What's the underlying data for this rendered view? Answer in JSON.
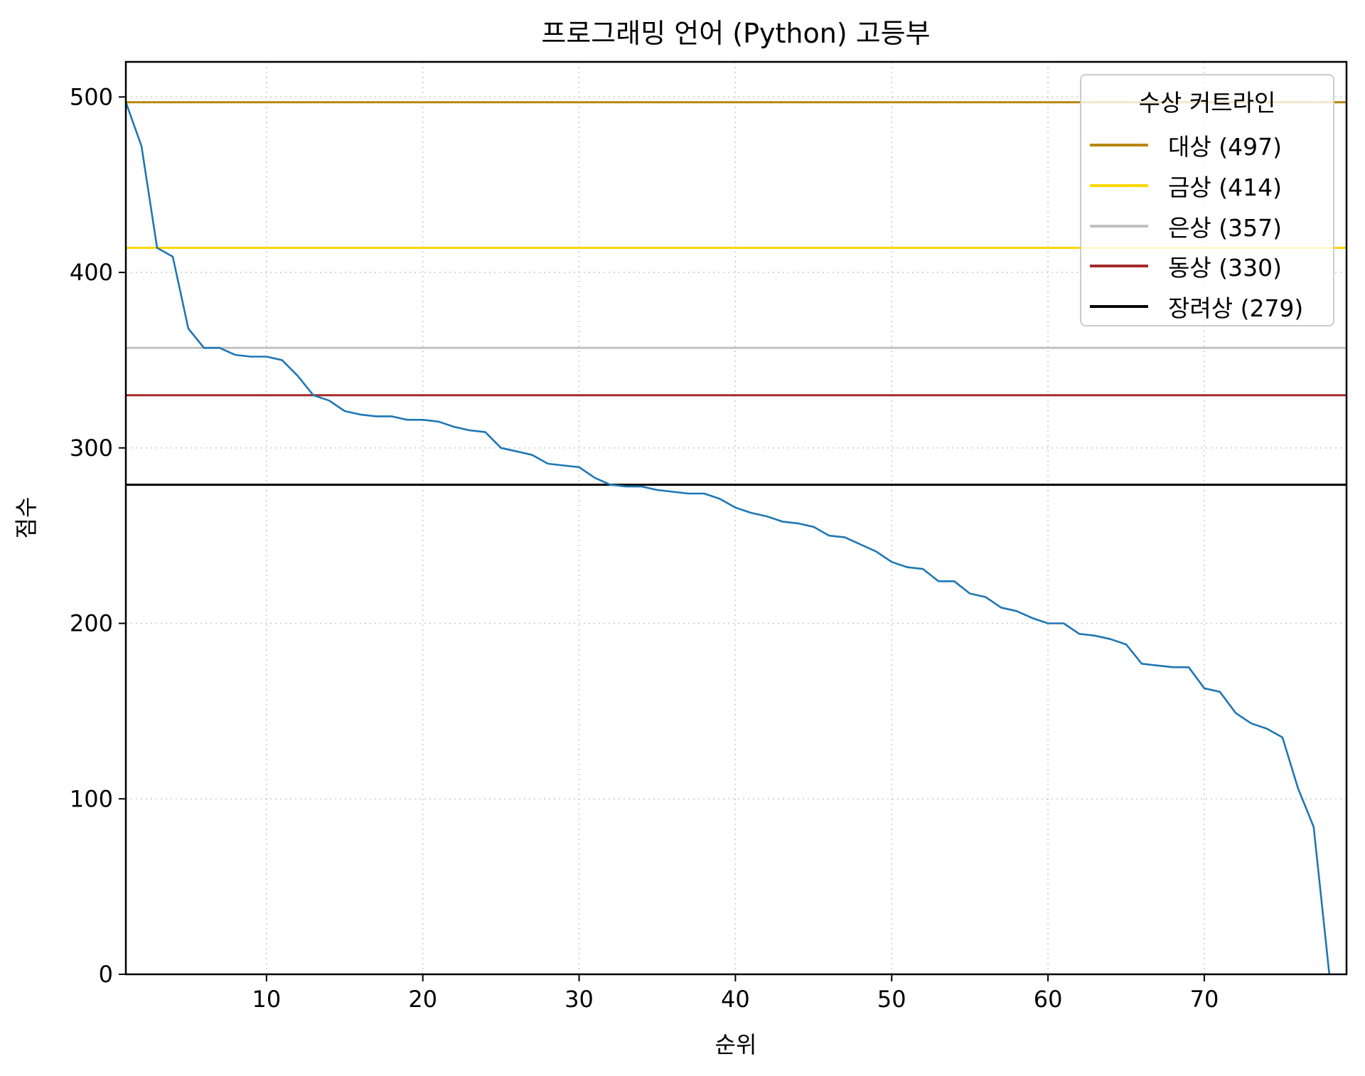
{
  "chart_data": {
    "type": "line",
    "title": "프로그래밍 언어 (Python) 고등부",
    "xlabel": "순위",
    "ylabel": "점수",
    "xlim": [
      1,
      79.1
    ],
    "ylim": [
      0,
      520
    ],
    "xticks": [
      10,
      20,
      30,
      40,
      50,
      60,
      70
    ],
    "yticks": [
      0,
      100,
      200,
      300,
      400,
      500
    ],
    "grid": true,
    "legend_position": "upper right",
    "legend_title": "수상 커트라인",
    "series": [
      {
        "name": "점수",
        "color": "#1f77b4",
        "x": [
          1,
          2,
          3,
          4,
          5,
          6,
          7,
          8,
          9,
          10,
          11,
          12,
          13,
          14,
          15,
          16,
          17,
          18,
          19,
          20,
          21,
          22,
          23,
          24,
          25,
          26,
          27,
          28,
          29,
          30,
          31,
          32,
          33,
          34,
          35,
          36,
          37,
          38,
          39,
          40,
          41,
          42,
          43,
          44,
          45,
          46,
          47,
          48,
          49,
          50,
          51,
          52,
          53,
          54,
          55,
          56,
          57,
          58,
          59,
          60,
          61,
          62,
          63,
          64,
          65,
          66,
          67,
          68,
          69,
          70,
          71,
          72,
          73,
          74,
          75,
          76,
          77,
          78
        ],
        "values": [
          497,
          472,
          414,
          409,
          368,
          357,
          357,
          353,
          352,
          352,
          350,
          341,
          330,
          327,
          321,
          319,
          318,
          318,
          316,
          316,
          315,
          312,
          310,
          309,
          300,
          298,
          296,
          291,
          290,
          289,
          283,
          279,
          278,
          278,
          276,
          275,
          274,
          274,
          271,
          266,
          263,
          261,
          258,
          257,
          255,
          250,
          249,
          245,
          241,
          235,
          232,
          231,
          224,
          224,
          217,
          215,
          209,
          207,
          203,
          200,
          200,
          194,
          193,
          191,
          188,
          177,
          176,
          175,
          175,
          163,
          161,
          149,
          143,
          140,
          135,
          106,
          84,
          0
        ]
      }
    ],
    "hlines": [
      {
        "label": "대상 (497)",
        "value": 497,
        "color": "#b8860b"
      },
      {
        "label": "금상 (414)",
        "value": 414,
        "color": "#ffd700"
      },
      {
        "label": "은상 (357)",
        "value": 357,
        "color": "#c0c0c0"
      },
      {
        "label": "동상 (330)",
        "value": 330,
        "color": "#a52a2a"
      },
      {
        "label": "장려상 (279)",
        "value": 279,
        "color": "#000000"
      }
    ]
  },
  "legend": {
    "title": "수상 커트라인",
    "items": [
      {
        "label": "대상 (497)",
        "color": "#b8860b"
      },
      {
        "label": "금상 (414)",
        "color": "#ffd700"
      },
      {
        "label": "은상 (357)",
        "color": "#c0c0c0"
      },
      {
        "label": "동상 (330)",
        "color": "#a52a2a"
      },
      {
        "label": "장려상 (279)",
        "color": "#000000"
      }
    ]
  }
}
